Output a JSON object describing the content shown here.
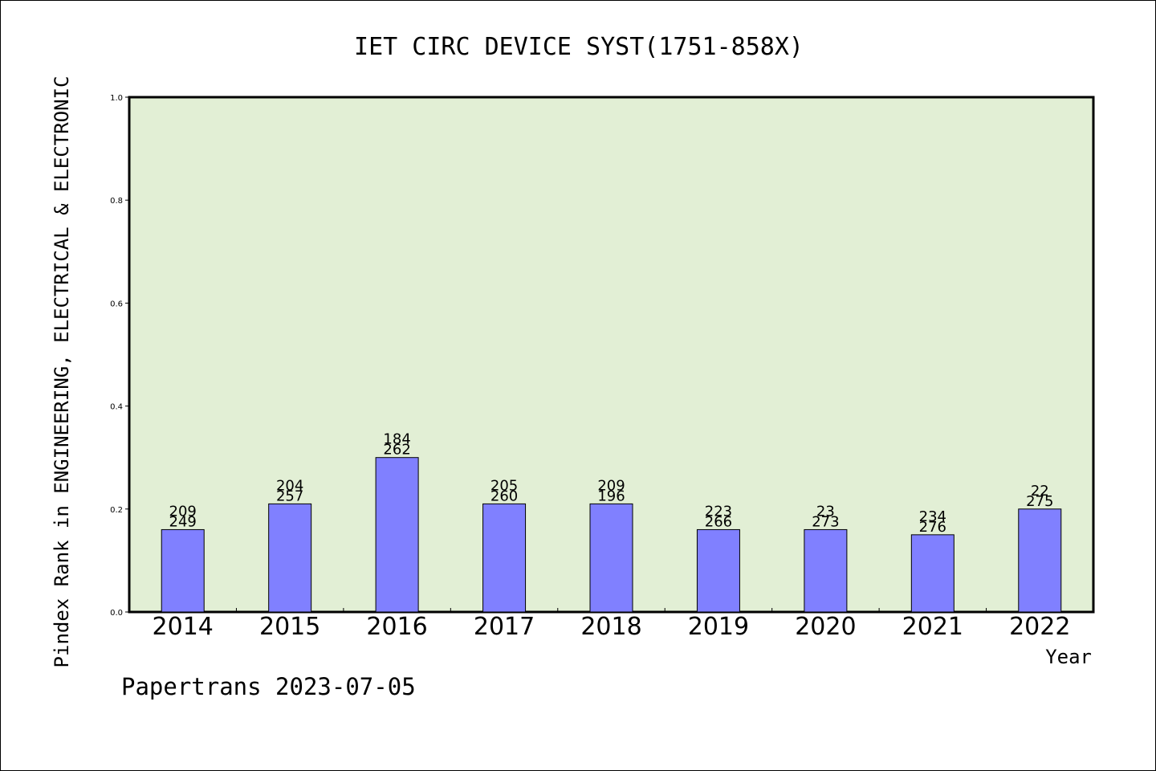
{
  "chart_data": {
    "type": "bar",
    "title": "IET CIRC DEVICE SYST(1751-858X)",
    "xlabel": "Year",
    "ylabel": "Pindex Rank in ENGINEERING, ELECTRICAL & ELECTRONIC",
    "ylim": [
      0,
      1.0
    ],
    "yticks": [
      "0.0",
      "0.2",
      "0.4",
      "0.6",
      "0.8",
      "1.0"
    ],
    "grid": false,
    "categories": [
      "2014",
      "2015",
      "2016",
      "2017",
      "2018",
      "2019",
      "2020",
      "2021",
      "2022"
    ],
    "values": [
      0.16,
      0.21,
      0.3,
      0.21,
      0.21,
      0.16,
      0.16,
      0.15,
      0.2
    ],
    "labels_top": [
      "209",
      "204",
      "184",
      "205",
      "209",
      "223",
      "23",
      "234",
      "22"
    ],
    "labels_bottom": [
      "249",
      "257",
      "262",
      "260",
      "196",
      "266",
      "273",
      "276",
      "275"
    ],
    "colors": {
      "plot_bg": "#e2efd5",
      "bar": "#8080ff",
      "bar_edge": "#000000"
    }
  },
  "footer": "Papertrans 2023-07-05"
}
